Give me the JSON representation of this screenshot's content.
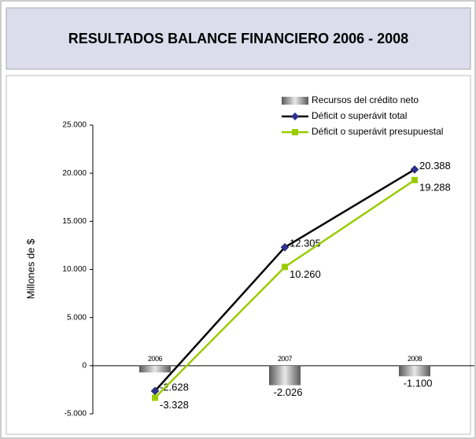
{
  "chart_data": {
    "type": "bar-line",
    "title": "RESULTADOS BALANCE FINANCIERO 2006 - 2008",
    "y_label": "Millones de $",
    "categories": [
      "2006",
      "2007",
      "2008"
    ],
    "series": [
      {
        "name": "Recursos del crédito neto",
        "kind": "bar",
        "color": "#8c8c8c",
        "values": [
          -700,
          -2026,
          -1100
        ],
        "value_labels": [
          null,
          "-2.026",
          "-1.100"
        ]
      },
      {
        "name": "Déficit o superávit total",
        "kind": "line",
        "marker": "diamond",
        "color": "#000000",
        "marker_color": "#2e3192",
        "values": [
          -2628,
          12305,
          20388
        ],
        "value_labels": [
          "-2.628",
          "12.305",
          "20.388"
        ]
      },
      {
        "name": "Déficit o superávit presupuestal",
        "kind": "line",
        "marker": "square",
        "color": "#99cc00",
        "marker_color": "#99cc00",
        "values": [
          -3328,
          10260,
          19288
        ],
        "value_labels": [
          "-3.328",
          "10.260",
          "19.288"
        ]
      }
    ],
    "ylim": [
      -5000,
      25000
    ],
    "yticks": [
      {
        "value": -5000,
        "label": "-5.000"
      },
      0,
      {
        "value": 5000,
        "label": "5.000"
      },
      {
        "value": 10000,
        "label": "10.000"
      },
      {
        "value": 15000,
        "label": "15.000"
      },
      {
        "value": 20000,
        "label": "20.000"
      },
      {
        "value": 25000,
        "label": "25.000"
      }
    ],
    "legend": "top-right"
  }
}
